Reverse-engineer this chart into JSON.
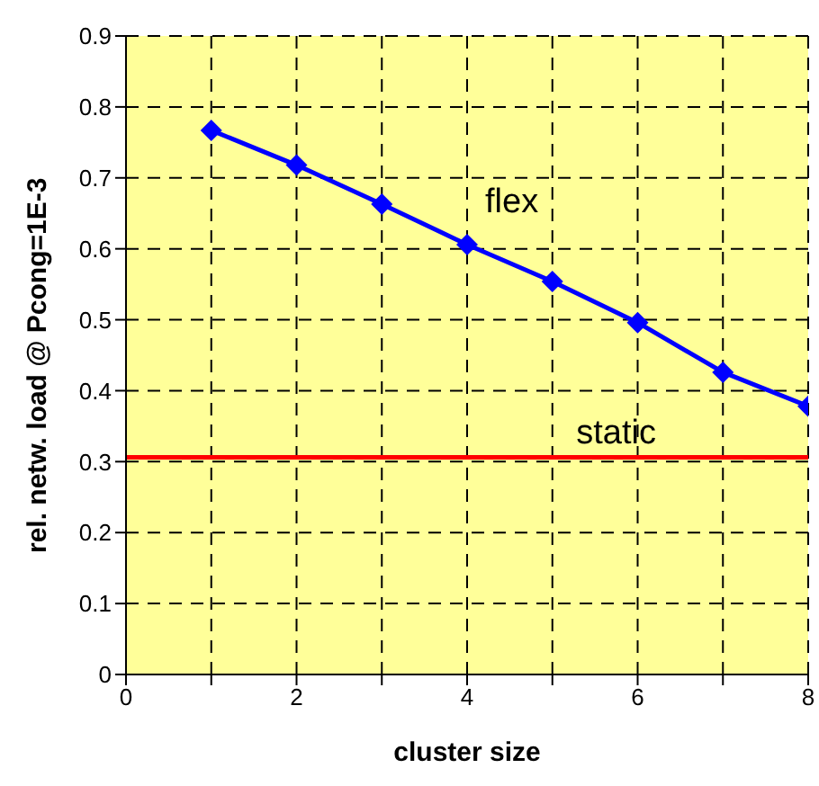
{
  "chart_data": {
    "type": "line",
    "xlabel": "cluster size",
    "ylabel": "rel. netw. load @ Pcong=1E-3",
    "x": [
      1,
      2,
      3,
      4,
      5,
      6,
      7,
      8
    ],
    "series": [
      {
        "name": "flex",
        "color": "#0000ff",
        "values": [
          0.767,
          0.718,
          0.663,
          0.606,
          0.554,
          0.496,
          0.426,
          0.378
        ]
      }
    ],
    "ref_lines": [
      {
        "axis": "y",
        "value": 0.306,
        "label": "static",
        "color": "#ff0000"
      }
    ],
    "xlim": [
      0,
      8
    ],
    "xticks": [
      0,
      {
        "value": 1,
        "label": null
      },
      2,
      {
        "value": 3,
        "label": null
      },
      4,
      {
        "value": 5,
        "label": null
      },
      6,
      {
        "value": 7,
        "label": null
      },
      8
    ],
    "ylim": [
      0,
      0.9
    ],
    "yticks": [
      0,
      0.1,
      0.2,
      0.3,
      0.4,
      0.5,
      0.6,
      0.7,
      0.8,
      0.9
    ],
    "grid": true,
    "marker": "diamond",
    "line_style": "solid"
  }
}
